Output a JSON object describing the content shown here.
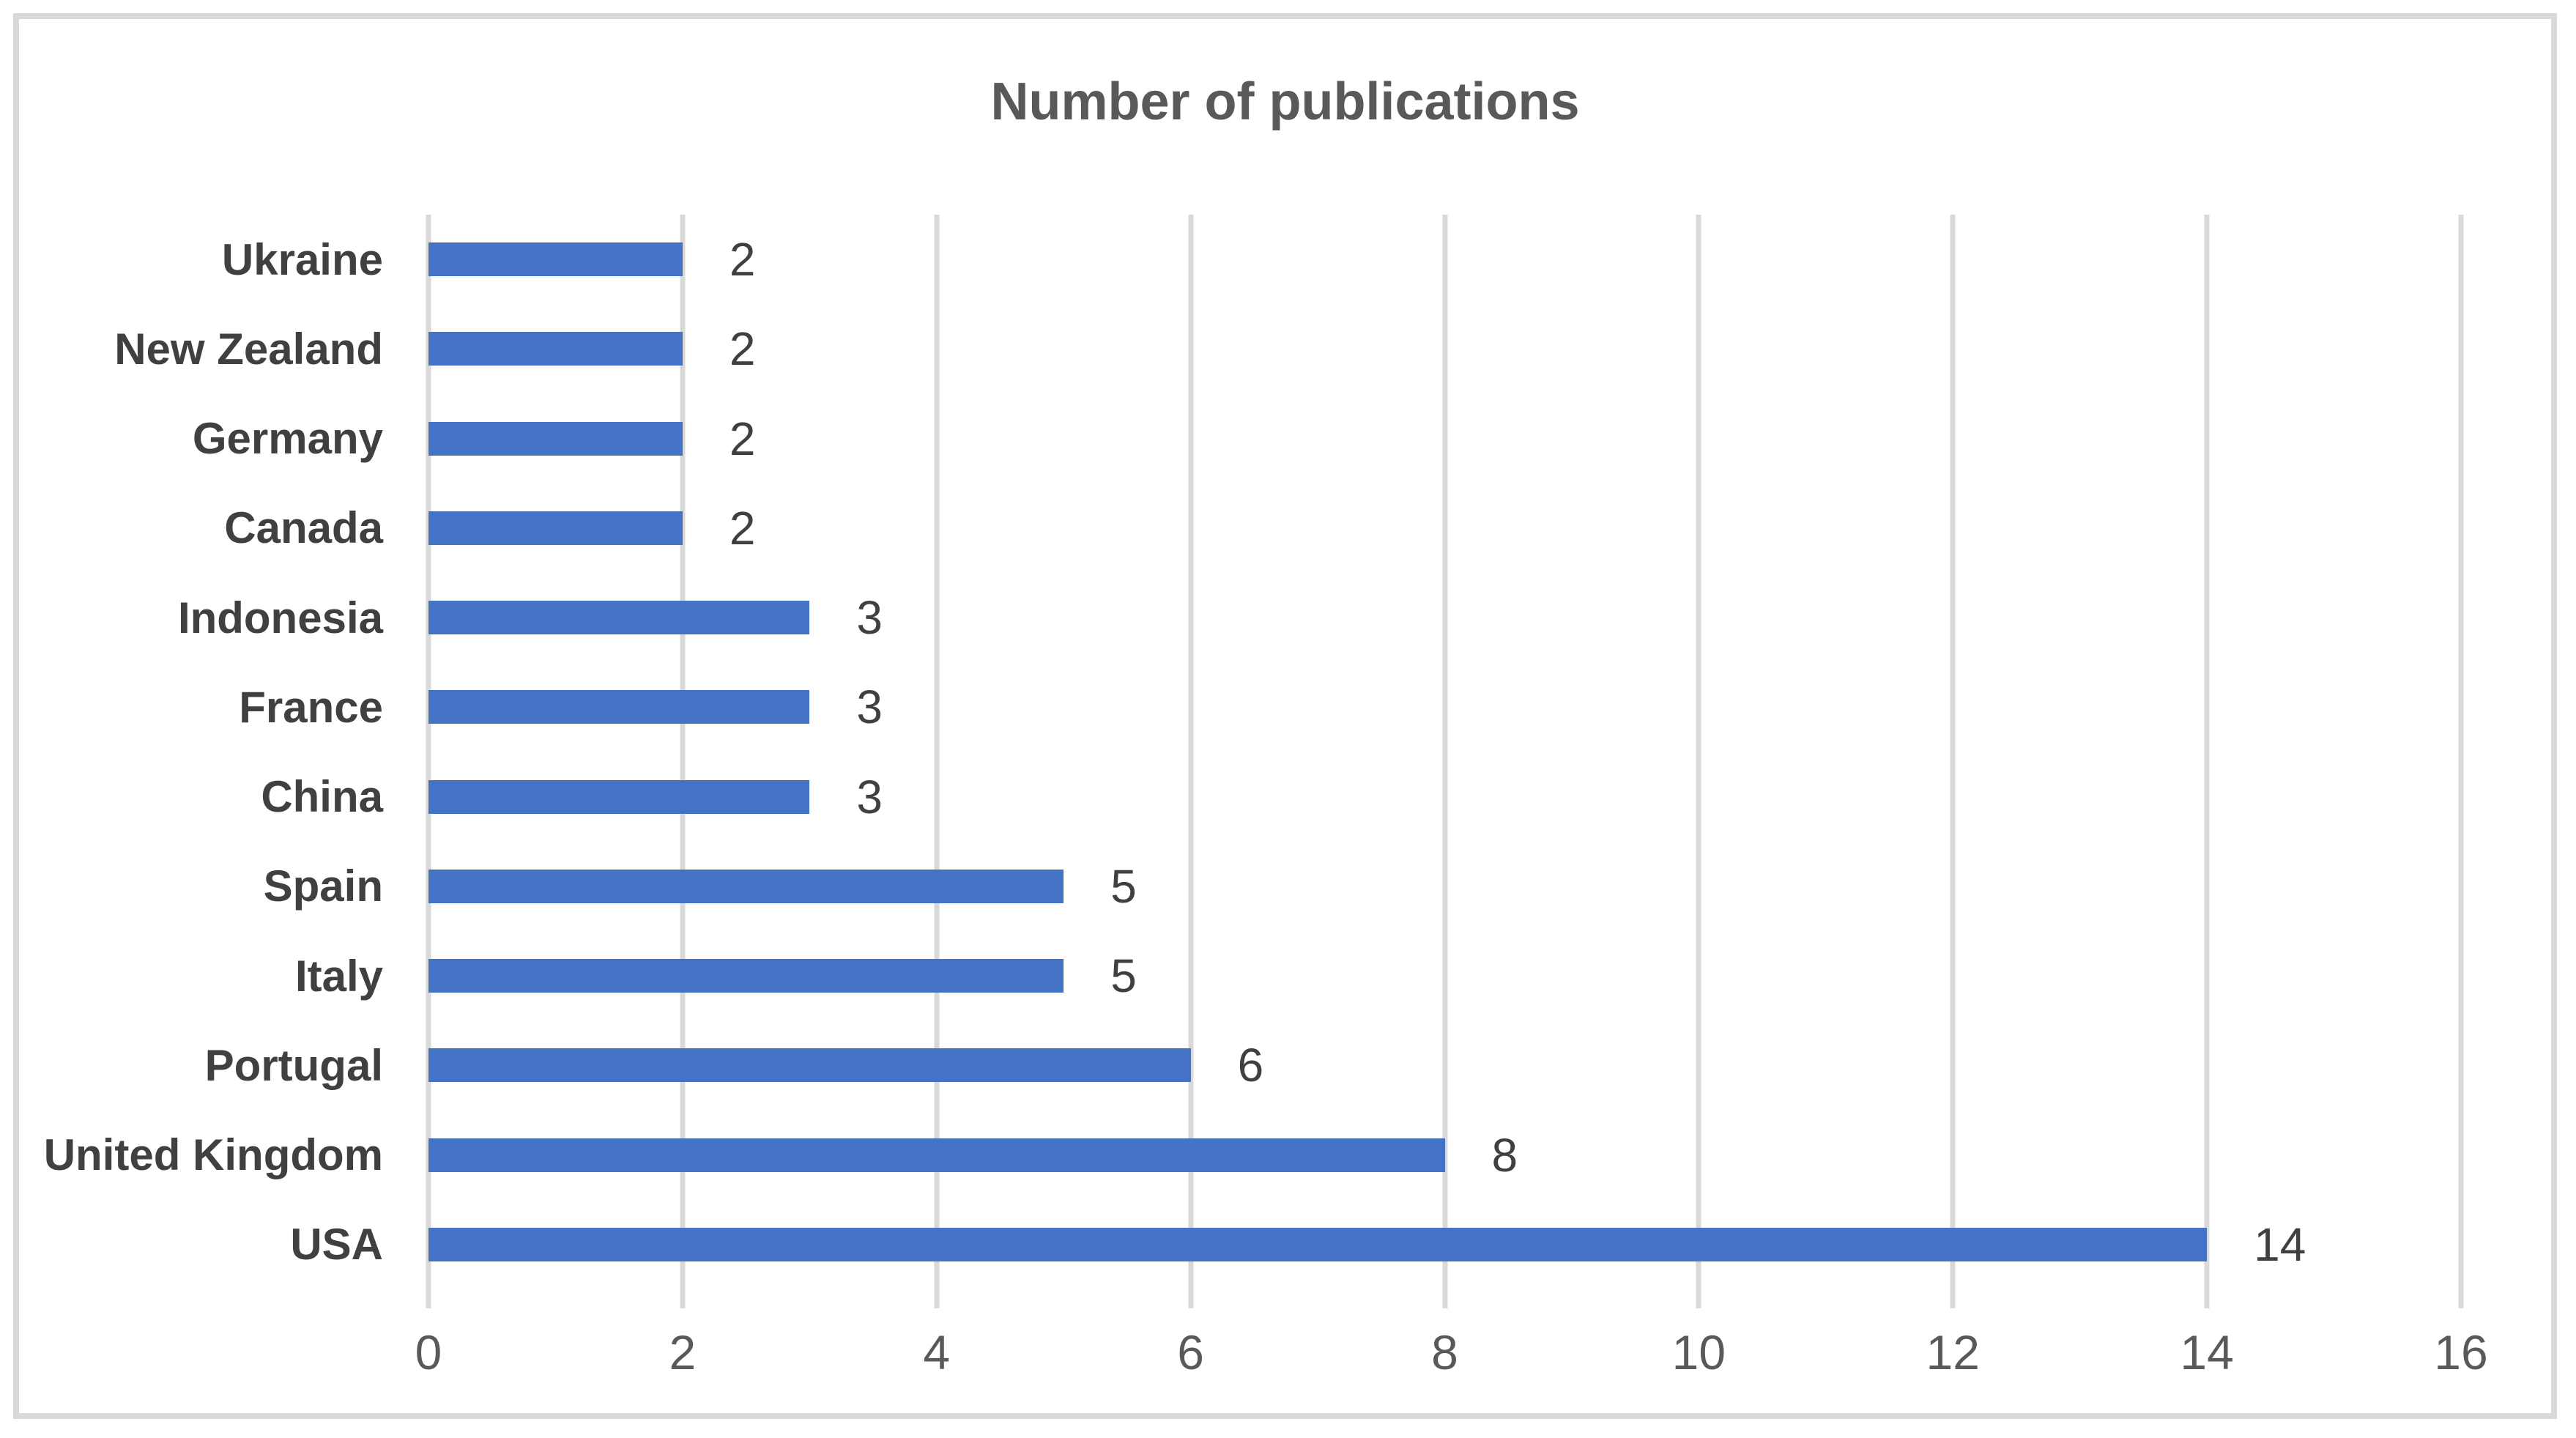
{
  "chart_data": {
    "type": "bar",
    "orientation": "horizontal",
    "title": "Number of publications",
    "xlabel": "",
    "ylabel": "",
    "categories": [
      "Ukraine",
      "New Zealand",
      "Germany",
      "Canada",
      "Indonesia",
      "France",
      "China",
      "Spain",
      "Italy",
      "Portugal",
      "United Kingdom",
      "USA"
    ],
    "values": [
      2,
      2,
      2,
      2,
      3,
      3,
      3,
      5,
      5,
      6,
      8,
      14
    ],
    "data_labels": [
      2,
      2,
      2,
      2,
      3,
      3,
      3,
      5,
      5,
      6,
      8,
      14
    ],
    "xlim": [
      0,
      16
    ],
    "x_ticks": [
      0,
      2,
      4,
      6,
      8,
      10,
      12,
      14,
      16
    ],
    "grid": "vertical-gridlines-on",
    "legend": "none",
    "colors": {
      "bar": "#4472c4",
      "gridline": "#d9d9d9",
      "frame_border": "#d9d9d9",
      "title_text": "#595959",
      "axis_tick_text": "#595959",
      "category_text": "#404040",
      "data_label_text": "#404040",
      "background": "#ffffff"
    }
  }
}
